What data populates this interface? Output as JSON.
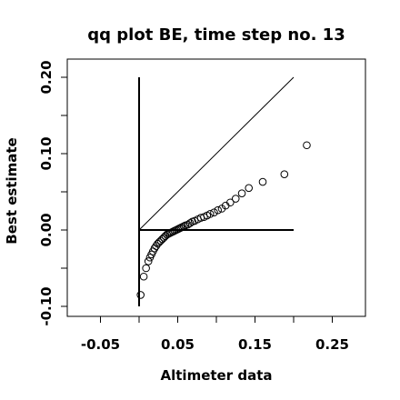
{
  "chart_data": {
    "type": "scatter",
    "title": "qq plot BE, time step no. 13",
    "xlabel": "Altimeter data",
    "ylabel": "Best estimate",
    "xlim": [
      -0.1,
      0.29
    ],
    "ylim": [
      -0.115,
      0.215
    ],
    "x_ticks": [
      -0.05,
      0.0,
      0.05,
      0.1,
      0.15,
      0.2,
      0.25
    ],
    "x_tick_labels": [
      "-0.05",
      "0.05",
      "0.15",
      "0.25"
    ],
    "x_tick_label_values": [
      -0.05,
      0.05,
      0.15,
      0.25
    ],
    "y_ticks": [
      -0.1,
      -0.05,
      0.0,
      0.05,
      0.1,
      0.15,
      0.2
    ],
    "y_tick_labels": [
      "-0.10",
      "0.00",
      "0.10",
      "0.20"
    ],
    "y_tick_label_values": [
      -0.1,
      0.0,
      0.1,
      0.2
    ],
    "grid": false,
    "reference_lines": {
      "vertical": {
        "x": 0.0,
        "y_from": -0.1,
        "y_to": 0.2
      },
      "horizontal": {
        "y": 0.0,
        "x_from": 0.0,
        "x_to": 0.2
      },
      "diagonal": {
        "from": [
          0.0,
          0.0
        ],
        "to": [
          0.2,
          0.2
        ]
      }
    },
    "points": {
      "x": [
        0.002,
        0.006,
        0.009,
        0.012,
        0.014,
        0.016,
        0.018,
        0.02,
        0.022,
        0.024,
        0.026,
        0.028,
        0.03,
        0.032,
        0.034,
        0.036,
        0.038,
        0.04,
        0.042,
        0.044,
        0.046,
        0.048,
        0.05,
        0.052,
        0.054,
        0.056,
        0.058,
        0.06,
        0.063,
        0.066,
        0.069,
        0.072,
        0.076,
        0.08,
        0.084,
        0.088,
        0.092,
        0.097,
        0.102,
        0.107,
        0.112,
        0.118,
        0.125,
        0.133,
        0.142,
        0.16,
        0.188,
        0.217
      ],
      "y": [
        -0.085,
        -0.061,
        -0.05,
        -0.041,
        -0.036,
        -0.032,
        -0.028,
        -0.024,
        -0.021,
        -0.018,
        -0.016,
        -0.014,
        -0.012,
        -0.01,
        -0.008,
        -0.006,
        -0.005,
        -0.004,
        -0.003,
        -0.002,
        -0.001,
        0.0,
        0.001,
        0.002,
        0.003,
        0.004,
        0.005,
        0.006,
        0.007,
        0.009,
        0.011,
        0.012,
        0.014,
        0.016,
        0.017,
        0.019,
        0.021,
        0.023,
        0.026,
        0.028,
        0.032,
        0.036,
        0.041,
        0.048,
        0.055,
        0.063,
        0.073,
        0.111
      ]
    }
  }
}
